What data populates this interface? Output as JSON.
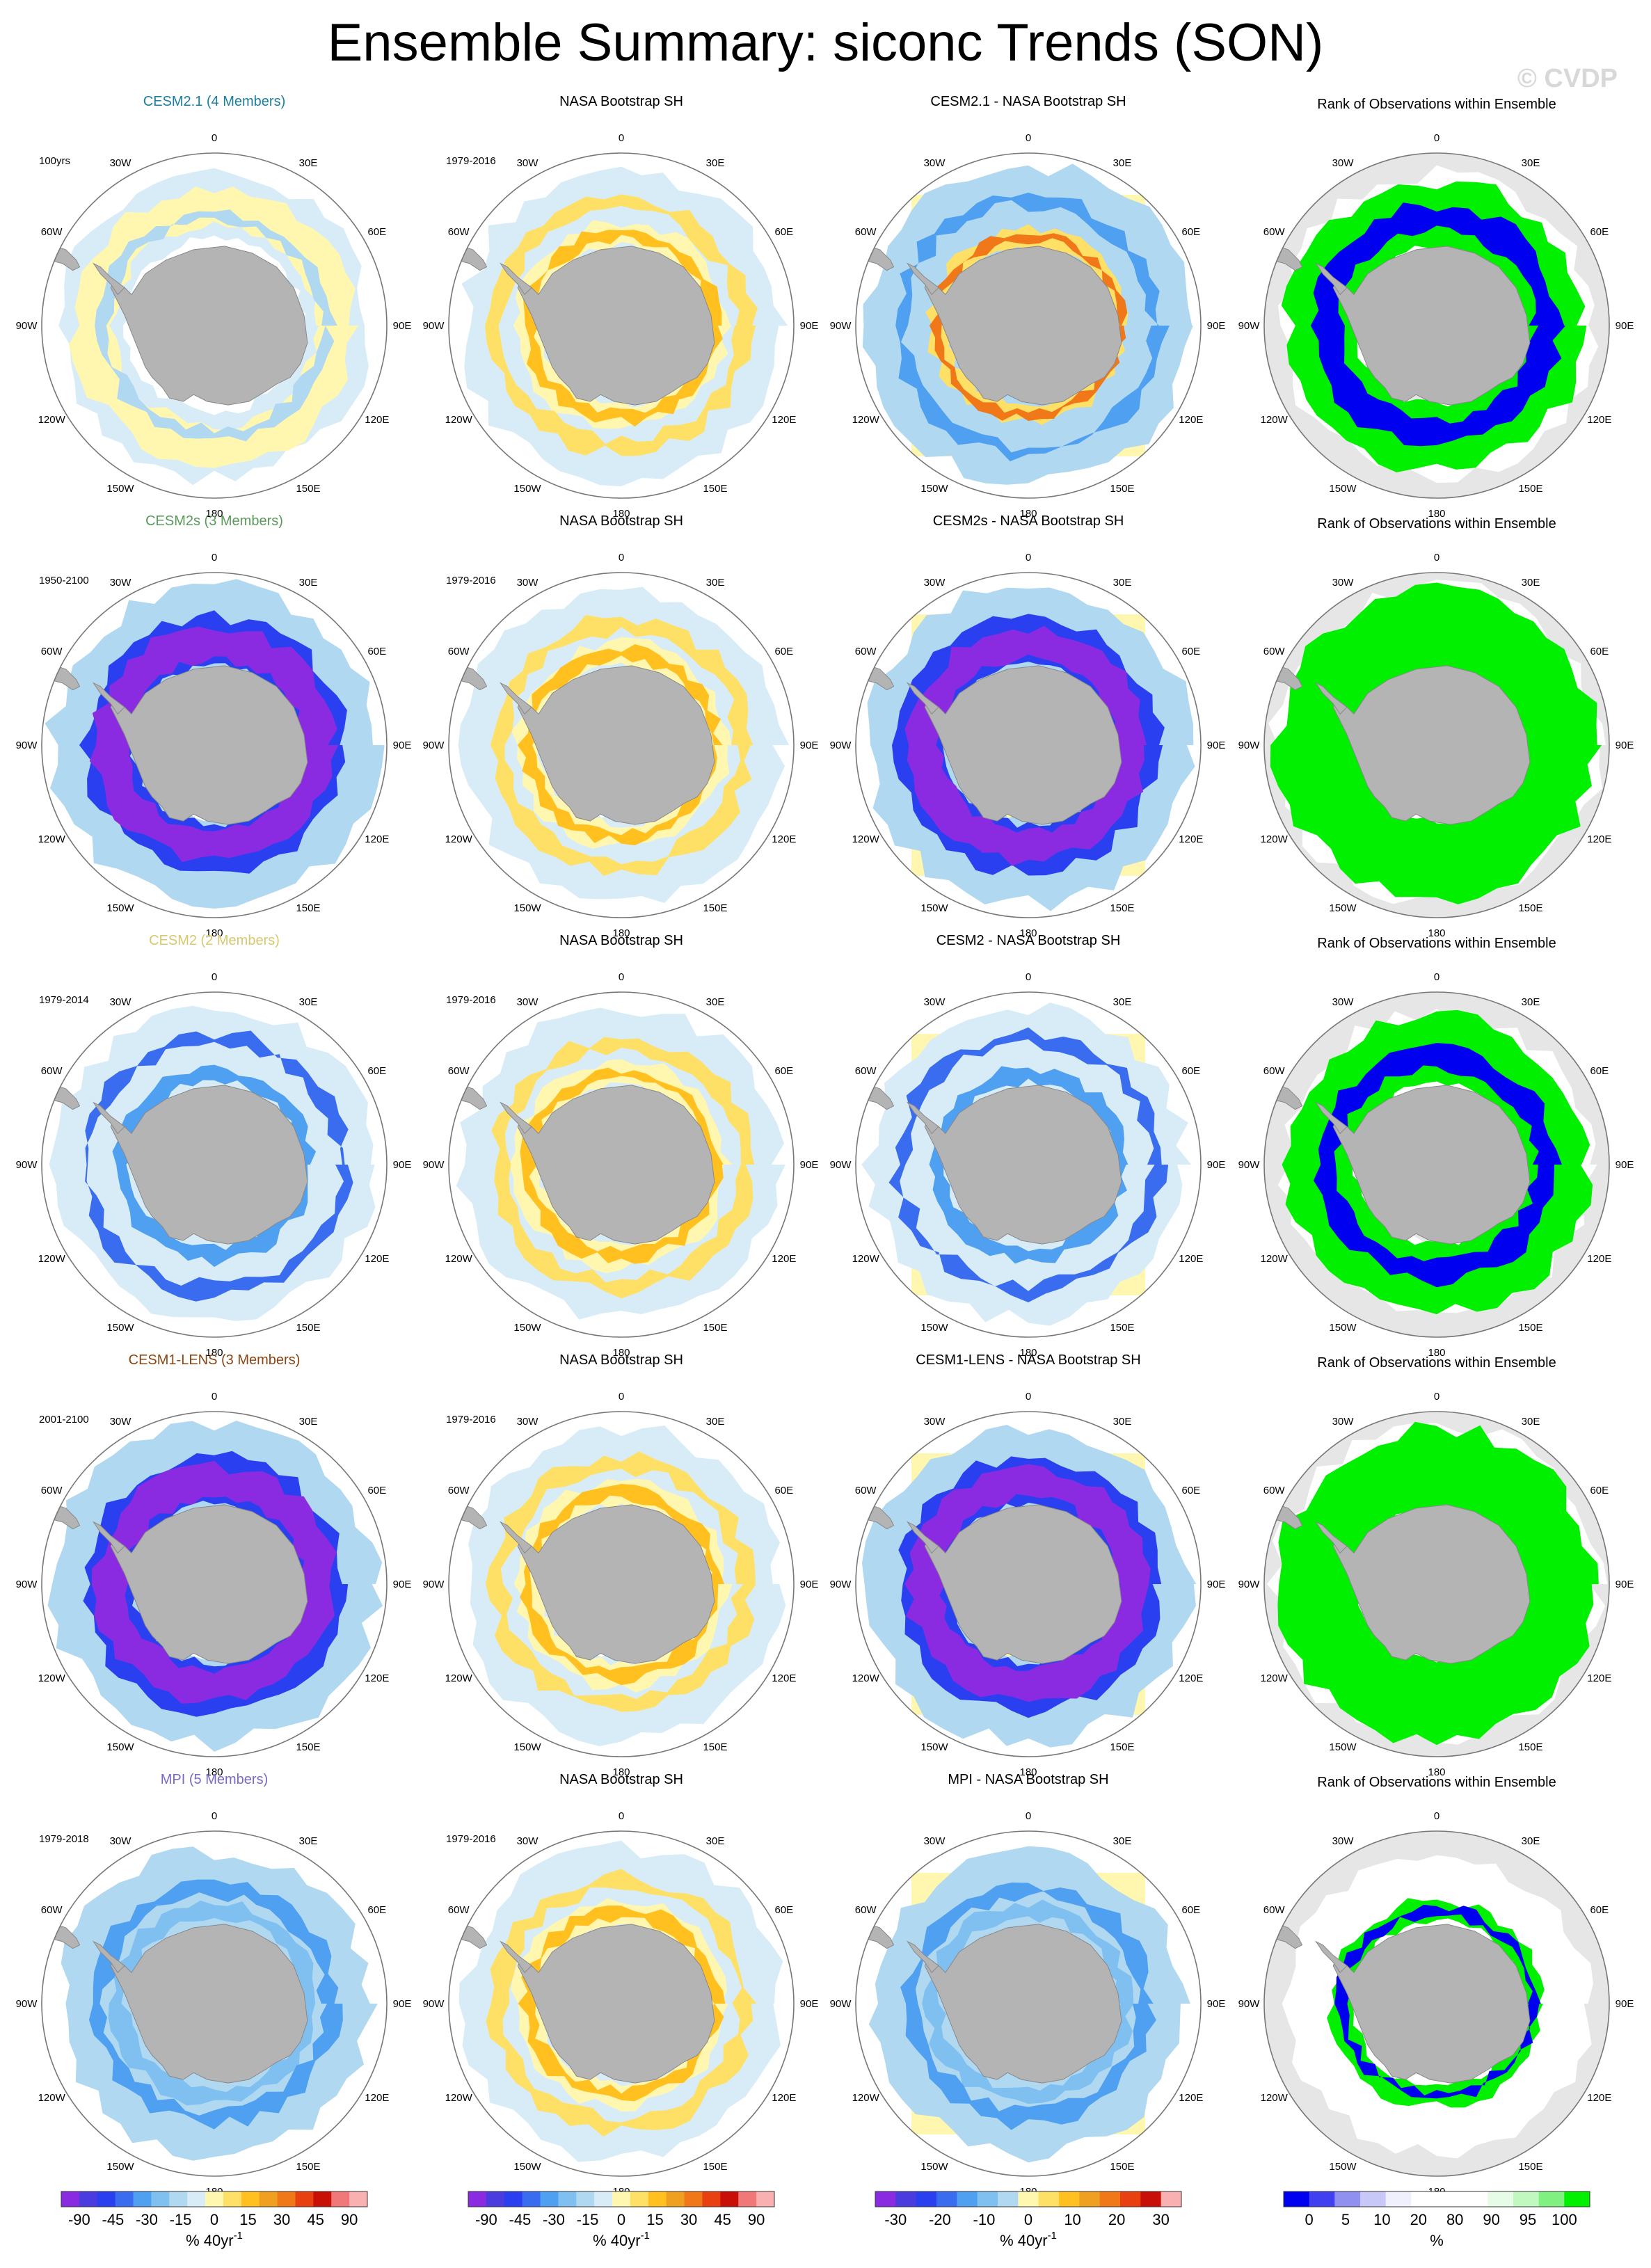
{
  "title": "Ensemble Summary: siconc Trends (SON)",
  "watermark": "© CVDP",
  "colors": {
    "land": "#b4b4b4",
    "land_edge": "#888888",
    "circle_edge": "#777777",
    "rank_background": "#e6e6e6",
    "rank_green": "#00f000",
    "rank_blue": "#0000f0",
    "rank_white": "#ffffff"
  },
  "longitude_labels": [
    "0",
    "30E",
    "60E",
    "90E",
    "120E",
    "150E",
    "180",
    "150W",
    "120W",
    "90W",
    "60W",
    "30W"
  ],
  "rows": [
    {
      "model": "CESM2.1 (4 Members)",
      "model_color": "#1a7f9e",
      "model_period": "100yrs",
      "obs": "NASA Bootstrap SH",
      "obs_period": "1979-2016",
      "diff": "CESM2.1 - NASA Bootstrap SH",
      "rank": "Rank of Observations within Ensemble",
      "model_pattern": "weak_mixed",
      "diff_pattern": "mixed_warm",
      "rank_pattern": "mixed_blue"
    },
    {
      "model": "CESM2s (3 Members)",
      "model_color": "#5a9a5a",
      "model_period": "1950-2100",
      "obs": "NASA Bootstrap SH",
      "obs_period": "1979-2016",
      "diff": "CESM2s - NASA Bootstrap SH",
      "rank": "Rank of Observations within Ensemble",
      "model_pattern": "strong_decline",
      "diff_pattern": "strong_decline",
      "rank_pattern": "mostly_green"
    },
    {
      "model": "CESM2 (2 Members)",
      "model_color": "#d8c870",
      "model_period": "1979-2014",
      "obs": "NASA Bootstrap SH",
      "obs_period": "1979-2016",
      "diff": "CESM2 - NASA Bootstrap SH",
      "rank": "Rank of Observations within Ensemble",
      "model_pattern": "moderate_decline",
      "diff_pattern": "moderate_decline",
      "rank_pattern": "green_blue"
    },
    {
      "model": "CESM1-LENS (3 Members)",
      "model_color": "#8b4513",
      "model_period": "2001-2100",
      "obs": "NASA Bootstrap SH",
      "obs_period": "1979-2016",
      "diff": "CESM1-LENS - NASA Bootstrap SH",
      "rank": "Rank of Observations within Ensemble",
      "model_pattern": "strong_decline",
      "diff_pattern": "strong_decline",
      "rank_pattern": "mostly_green"
    },
    {
      "model": "MPI (5 Members)",
      "model_color": "#7b68c8",
      "model_period": "1979-2018",
      "obs": "NASA Bootstrap SH",
      "obs_period": "1979-2016",
      "diff": "MPI - NASA Bootstrap SH",
      "rank": "Rank of Observations within Ensemble",
      "model_pattern": "mpi_mixed",
      "diff_pattern": "mpi_mixed",
      "rank_pattern": "sparse_green"
    }
  ],
  "colorbars": [
    {
      "name": "trend",
      "unit": "% 40yr-1",
      "labels": [
        "-90",
        "-45",
        "-30",
        "-15",
        "0",
        "15",
        "30",
        "45",
        "90"
      ],
      "colors": [
        "#8a2be2",
        "#4b3ce0",
        "#2a40f0",
        "#3a6cf0",
        "#4fa0f0",
        "#7fc0f0",
        "#b0d8f0",
        "#d8ecf8",
        "#fff7b0",
        "#ffe066",
        "#ffc020",
        "#f0a020",
        "#f07818",
        "#e84010",
        "#c81008",
        "#f07878",
        "#f8b0b0"
      ]
    },
    {
      "name": "trend",
      "unit": "% 40yr-1",
      "labels": [
        "-90",
        "-45",
        "-30",
        "-15",
        "0",
        "15",
        "30",
        "45",
        "90"
      ],
      "colors": [
        "#8a2be2",
        "#4b3ce0",
        "#2a40f0",
        "#3a6cf0",
        "#4fa0f0",
        "#7fc0f0",
        "#b0d8f0",
        "#d8ecf8",
        "#fff7b0",
        "#ffe066",
        "#ffc020",
        "#f0a020",
        "#f07818",
        "#e84010",
        "#c81008",
        "#f07878",
        "#f8b0b0"
      ]
    },
    {
      "name": "difference",
      "unit": "% 40yr-1",
      "labels": [
        "-30",
        "-20",
        "-10",
        "0",
        "10",
        "20",
        "30"
      ],
      "colors": [
        "#8a2be2",
        "#4b3ce0",
        "#2a40f0",
        "#3a6cf0",
        "#4fa0f0",
        "#7fc0f0",
        "#b0d8f0",
        "#fff7b0",
        "#ffe066",
        "#ffc020",
        "#f0a020",
        "#f07818",
        "#e84010",
        "#c81008",
        "#f8b0b0"
      ]
    },
    {
      "name": "rank",
      "unit": "%",
      "labels": [
        "0",
        "5",
        "10",
        "20",
        "80",
        "90",
        "95",
        "100"
      ],
      "colors": [
        "#0000f0",
        "#4040f0",
        "#9090f0",
        "#c8c8f8",
        "#f0f0fc",
        "#ffffff",
        "#ffffff",
        "#ffffff",
        "#e6fce6",
        "#c0f8c0",
        "#80f080",
        "#00f000"
      ]
    }
  ]
}
